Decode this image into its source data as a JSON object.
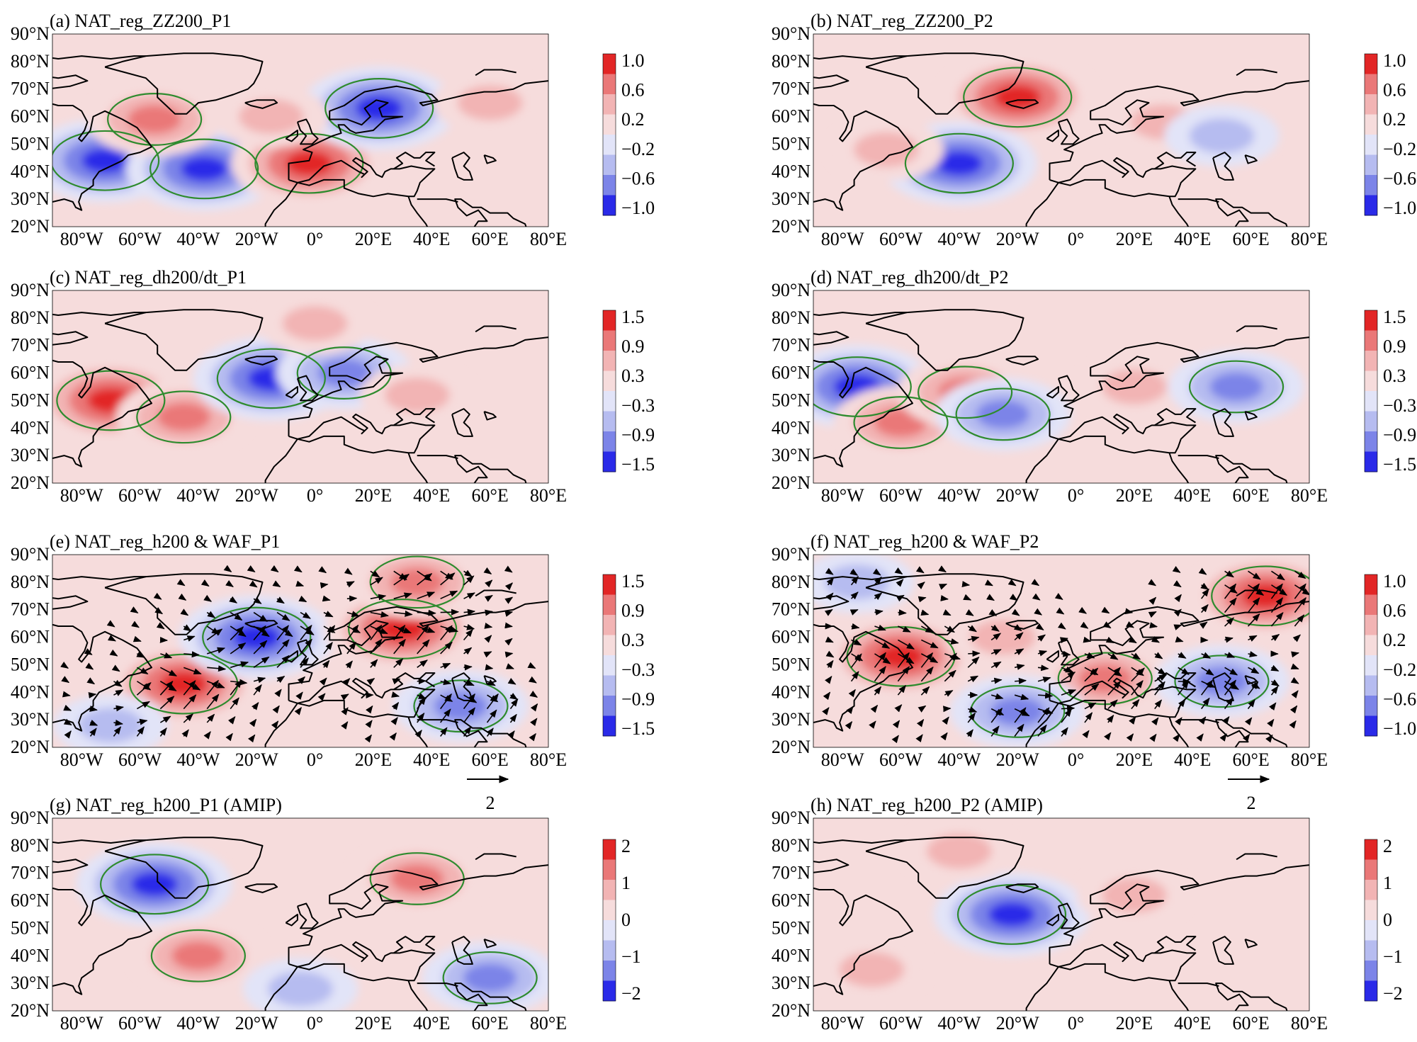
{
  "figure": {
    "lat_ticks": [
      "90°N",
      "80°N",
      "70°N",
      "60°N",
      "50°N",
      "40°N",
      "30°N",
      "20°N"
    ],
    "lon_ticks": [
      "80°W",
      "60°W",
      "40°W",
      "20°W",
      "0°",
      "20°E",
      "40°E",
      "60°E",
      "80°E"
    ]
  },
  "chart_data": [
    {
      "id": "a",
      "type": "heatmap",
      "title": "(a) NAT_reg_ZZ200_P1",
      "colorbar": {
        "ticks": [
          "1.0",
          "0.6",
          "0.2",
          "−0.2",
          "−0.6",
          "−1.0"
        ],
        "values": [
          1.0,
          0.6,
          0.2,
          -0.2,
          -0.6,
          -1.0
        ]
      },
      "xlim": [
        -90,
        80
      ],
      "ylim": [
        20,
        90
      ],
      "anomalies": [
        {
          "lon": -72,
          "lat": 44,
          "sign": -1,
          "level": 3
        },
        {
          "lon": -38,
          "lat": 41,
          "sign": -1,
          "level": 3
        },
        {
          "lon": -55,
          "lat": 59,
          "sign": 1,
          "level": 2
        },
        {
          "lon": -2,
          "lat": 43,
          "sign": 1,
          "level": 3
        },
        {
          "lon": 22,
          "lat": 63,
          "sign": -1,
          "level": 3
        },
        {
          "lon": -15,
          "lat": 60,
          "sign": 1,
          "level": 1
        },
        {
          "lon": 60,
          "lat": 65,
          "sign": 1,
          "level": 1
        }
      ]
    },
    {
      "id": "b",
      "type": "heatmap",
      "title": "(b) NAT_reg_ZZ200_P2",
      "colorbar": {
        "ticks": [
          "1.0",
          "0.6",
          "0.2",
          "−0.2",
          "−0.6",
          "−1.0"
        ],
        "values": [
          1.0,
          0.6,
          0.2,
          -0.2,
          -0.6,
          -1.0
        ]
      },
      "xlim": [
        -90,
        80
      ],
      "ylim": [
        20,
        90
      ],
      "anomalies": [
        {
          "lon": -20,
          "lat": 67,
          "sign": 1,
          "level": 3
        },
        {
          "lon": -40,
          "lat": 43,
          "sign": -1,
          "level": 3
        },
        {
          "lon": -65,
          "lat": 48,
          "sign": 1,
          "level": 1
        },
        {
          "lon": 30,
          "lat": 58,
          "sign": 1,
          "level": 1
        },
        {
          "lon": 50,
          "lat": 53,
          "sign": -1,
          "level": 1
        }
      ]
    },
    {
      "id": "c",
      "type": "heatmap",
      "title": "(c) NAT_reg_dh200/dt_P1",
      "colorbar": {
        "ticks": [
          "1.5",
          "0.9",
          "0.3",
          "−0.3",
          "−0.9",
          "−1.5"
        ],
        "values": [
          1.5,
          0.9,
          0.3,
          -0.3,
          -0.9,
          -1.5
        ]
      },
      "xlim": [
        -90,
        80
      ],
      "ylim": [
        20,
        90
      ],
      "anomalies": [
        {
          "lon": -70,
          "lat": 50,
          "sign": 1,
          "level": 3
        },
        {
          "lon": -45,
          "lat": 44,
          "sign": 1,
          "level": 2
        },
        {
          "lon": -15,
          "lat": 58,
          "sign": -1,
          "level": 3
        },
        {
          "lon": 10,
          "lat": 60,
          "sign": -1,
          "level": 2
        },
        {
          "lon": 35,
          "lat": 52,
          "sign": 1,
          "level": 1
        },
        {
          "lon": 0,
          "lat": 78,
          "sign": 1,
          "level": 1
        }
      ]
    },
    {
      "id": "d",
      "type": "heatmap",
      "title": "(d) NAT_reg_dh200/dt_P2",
      "colorbar": {
        "ticks": [
          "1.5",
          "0.9",
          "0.3",
          "−0.3",
          "−0.9",
          "−1.5"
        ],
        "values": [
          1.5,
          0.9,
          0.3,
          -0.3,
          -0.9,
          -1.5
        ]
      },
      "xlim": [
        -90,
        80
      ],
      "ylim": [
        20,
        90
      ],
      "anomalies": [
        {
          "lon": -75,
          "lat": 55,
          "sign": -1,
          "level": 3
        },
        {
          "lon": -60,
          "lat": 42,
          "sign": 1,
          "level": 2
        },
        {
          "lon": -38,
          "lat": 53,
          "sign": 1,
          "level": 2
        },
        {
          "lon": -25,
          "lat": 45,
          "sign": -1,
          "level": 2
        },
        {
          "lon": 20,
          "lat": 55,
          "sign": 1,
          "level": 1
        },
        {
          "lon": 55,
          "lat": 55,
          "sign": -1,
          "level": 2
        }
      ]
    },
    {
      "id": "e",
      "type": "heatmap",
      "title": "(e) NAT_reg_h200 & WAF_P1",
      "colorbar": {
        "ticks": [
          "1.5",
          "0.9",
          "0.3",
          "−0.3",
          "−0.9",
          "−1.5"
        ],
        "values": [
          1.5,
          0.9,
          0.3,
          -0.3,
          -0.9,
          -1.5
        ]
      },
      "vector_key": "2",
      "xlim": [
        -90,
        80
      ],
      "ylim": [
        20,
        90
      ],
      "anomalies": [
        {
          "lon": -45,
          "lat": 43,
          "sign": 1,
          "level": 3
        },
        {
          "lon": -20,
          "lat": 60,
          "sign": -1,
          "level": 3
        },
        {
          "lon": 30,
          "lat": 63,
          "sign": 1,
          "level": 3
        },
        {
          "lon": 35,
          "lat": 80,
          "sign": 1,
          "level": 2
        },
        {
          "lon": 50,
          "lat": 35,
          "sign": -1,
          "level": 2
        },
        {
          "lon": -70,
          "lat": 28,
          "sign": -1,
          "level": 1
        }
      ]
    },
    {
      "id": "f",
      "type": "heatmap",
      "title": "(f) NAT_reg_h200 & WAF_P2",
      "colorbar": {
        "ticks": [
          "1.0",
          "0.6",
          "0.2",
          "−0.2",
          "−0.6",
          "−1.0"
        ],
        "values": [
          1.0,
          0.6,
          0.2,
          -0.2,
          -0.6,
          -1.0
        ]
      },
      "vector_key": "2",
      "xlim": [
        -90,
        80
      ],
      "ylim": [
        20,
        90
      ],
      "anomalies": [
        {
          "lon": -60,
          "lat": 53,
          "sign": 1,
          "level": 3
        },
        {
          "lon": -25,
          "lat": 60,
          "sign": 1,
          "level": 1
        },
        {
          "lon": 65,
          "lat": 75,
          "sign": 1,
          "level": 3
        },
        {
          "lon": 10,
          "lat": 45,
          "sign": 1,
          "level": 2
        },
        {
          "lon": -20,
          "lat": 33,
          "sign": -1,
          "level": 2
        },
        {
          "lon": 50,
          "lat": 44,
          "sign": -1,
          "level": 2
        },
        {
          "lon": -75,
          "lat": 80,
          "sign": -1,
          "level": 1
        }
      ]
    },
    {
      "id": "g",
      "type": "heatmap",
      "title": "(g) NAT_reg_h200_P1 (AMIP)",
      "colorbar": {
        "ticks": [
          "2",
          "1",
          "0",
          "−1",
          "−2"
        ],
        "values": [
          2,
          1,
          0,
          -1,
          -2
        ]
      },
      "xlim": [
        -90,
        80
      ],
      "ylim": [
        20,
        90
      ],
      "anomalies": [
        {
          "lon": -55,
          "lat": 66,
          "sign": -1,
          "level": 3
        },
        {
          "lon": 35,
          "lat": 68,
          "sign": 1,
          "level": 2
        },
        {
          "lon": -40,
          "lat": 40,
          "sign": 1,
          "level": 2
        },
        {
          "lon": 60,
          "lat": 32,
          "sign": -1,
          "level": 2
        },
        {
          "lon": -5,
          "lat": 28,
          "sign": -1,
          "level": 1
        }
      ]
    },
    {
      "id": "h",
      "type": "heatmap",
      "title": "(h) NAT_reg_h200_P2 (AMIP)",
      "colorbar": {
        "ticks": [
          "2",
          "1",
          "0",
          "−1",
          "−2"
        ],
        "values": [
          2,
          1,
          0,
          -1,
          -2
        ]
      },
      "xlim": [
        -90,
        80
      ],
      "ylim": [
        20,
        90
      ],
      "anomalies": [
        {
          "lon": -22,
          "lat": 55,
          "sign": -1,
          "level": 3
        },
        {
          "lon": 20,
          "lat": 62,
          "sign": 1,
          "level": 1
        },
        {
          "lon": -70,
          "lat": 35,
          "sign": 1,
          "level": 1
        },
        {
          "lon": -40,
          "lat": 78,
          "sign": 1,
          "level": 1
        }
      ]
    }
  ],
  "colors": {
    "pos": [
      "#f6dcdc",
      "#f2b4b4",
      "#ea7878",
      "#e22626"
    ],
    "neg": [
      "#e2e4f8",
      "#b6bcf0",
      "#7c84e8",
      "#2a2ae8"
    ],
    "significance": "#2e8b2e",
    "coast": "#000000"
  }
}
